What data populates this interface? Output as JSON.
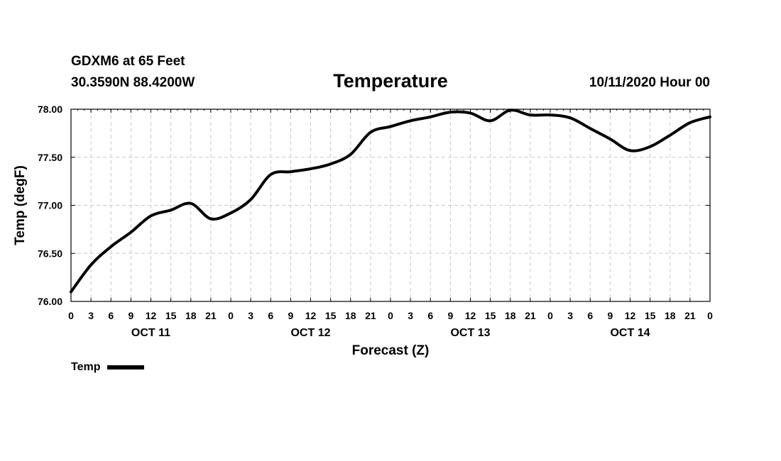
{
  "header": {
    "station": "GDXM6 at 65 Feet",
    "coords": "30.3590N 88.4200W",
    "issued": "10/11/2020 Hour 00"
  },
  "legend": {
    "label": "Temp"
  },
  "chart_data": {
    "type": "line",
    "title": "Temperature",
    "xlabel": "Forecast (Z)",
    "ylabel": "Temp (degF)",
    "ylim": [
      76.0,
      78.0
    ],
    "yticks": [
      "76.00",
      "76.50",
      "77.00",
      "77.50",
      "78.00"
    ],
    "xlim": [
      0,
      96
    ],
    "xtick_labels": [
      "0",
      "3",
      "6",
      "9",
      "12",
      "15",
      "18",
      "21",
      "0",
      "3",
      "6",
      "9",
      "12",
      "15",
      "18",
      "21",
      "0",
      "3",
      "6",
      "9",
      "12",
      "15",
      "18",
      "21",
      "0",
      "3",
      "6",
      "9",
      "12",
      "15",
      "18",
      "21",
      "0"
    ],
    "day_labels": [
      {
        "label": "OCT 11",
        "hour": 12
      },
      {
        "label": "OCT 12",
        "hour": 36
      },
      {
        "label": "OCT 13",
        "hour": 60
      },
      {
        "label": "OCT 14",
        "hour": 84
      }
    ],
    "grid": true,
    "series": [
      {
        "name": "Temp",
        "x": [
          0,
          3,
          6,
          9,
          12,
          15,
          18,
          21,
          24,
          27,
          30,
          33,
          36,
          39,
          42,
          45,
          48,
          51,
          54,
          57,
          60,
          63,
          66,
          69,
          72,
          75,
          78,
          81,
          84,
          87,
          90,
          93,
          96
        ],
        "values": [
          76.1,
          76.38,
          76.57,
          76.72,
          76.89,
          76.95,
          77.02,
          76.86,
          76.92,
          77.06,
          77.32,
          77.35,
          77.38,
          77.43,
          77.53,
          77.76,
          77.82,
          77.88,
          77.92,
          77.97,
          77.96,
          77.88,
          77.99,
          77.94,
          77.94,
          77.91,
          77.8,
          77.69,
          77.57,
          77.61,
          77.73,
          77.86,
          77.92
        ]
      }
    ]
  }
}
